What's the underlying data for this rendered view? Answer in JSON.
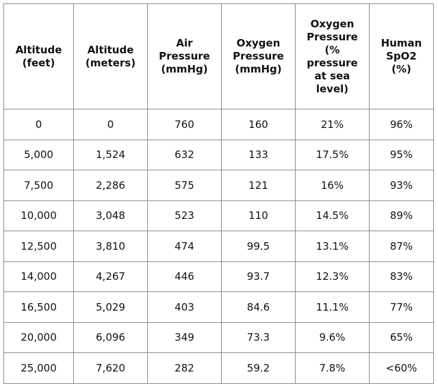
{
  "table": {
    "header": [
      "Altitude\n(feet)",
      "Altitude\n(meters)",
      "Air\nPressure\n(mmHg)",
      "Oxygen\nPressure\n(mmHg)",
      "Oxygen\nPressure\n(%\npressure\nat sea\nlevel)",
      "Human\nSpO2\n(%)"
    ],
    "rows": [
      [
        "0",
        "0",
        "760",
        "160",
        "21%",
        "96%"
      ],
      [
        "5,000",
        "1,524",
        "632",
        "133",
        "17.5%",
        "95%"
      ],
      [
        "7,500",
        "2,286",
        "575",
        "121",
        "16%",
        "93%"
      ],
      [
        "10,000",
        "3,048",
        "523",
        "110",
        "14.5%",
        "89%"
      ],
      [
        "12,500",
        "3,810",
        "474",
        "99.5",
        "13.1%",
        "87%"
      ],
      [
        "14,000",
        "4,267",
        "446",
        "93.7",
        "12.3%",
        "83%"
      ],
      [
        "16,500",
        "5,029",
        "403",
        "84.6",
        "11.1%",
        "77%"
      ],
      [
        "20,000",
        "6,096",
        "349",
        "73.3",
        "9.6%",
        "65%"
      ],
      [
        "25,000",
        "7,620",
        "282",
        "59.2",
        "7.8%",
        "<60%"
      ]
    ]
  }
}
